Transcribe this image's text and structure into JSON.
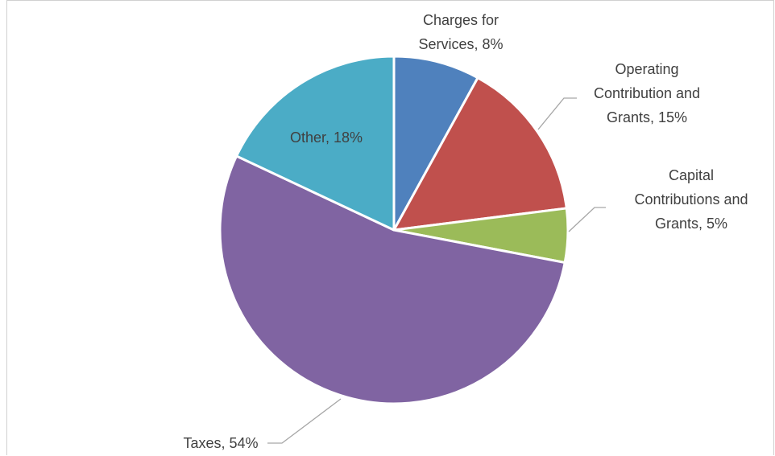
{
  "chart_data": {
    "type": "pie",
    "title": "",
    "slices": [
      {
        "label": "Charges for Services",
        "value": 8,
        "display": [
          "Charges for",
          "Services, 8%"
        ],
        "color": "#4f81bd"
      },
      {
        "label": "Operating Contribution and Grants",
        "value": 15,
        "display": [
          "Operating",
          "Contribution and",
          "Grants, 15%"
        ],
        "color": "#c0504d"
      },
      {
        "label": "Capital Contributions and Grants",
        "value": 5,
        "display": [
          "Capital",
          "Contributions and",
          "Grants, 5%"
        ],
        "color": "#9bbb59"
      },
      {
        "label": "Taxes",
        "value": 54,
        "display": [
          "Taxes, 54%"
        ],
        "color": "#8064a2"
      },
      {
        "label": "Other",
        "value": 18,
        "display": [
          "Other, 18%"
        ],
        "color": "#4bacc6"
      }
    ],
    "start_angle_deg": 0,
    "direction": "clockwise",
    "legend": "none"
  }
}
